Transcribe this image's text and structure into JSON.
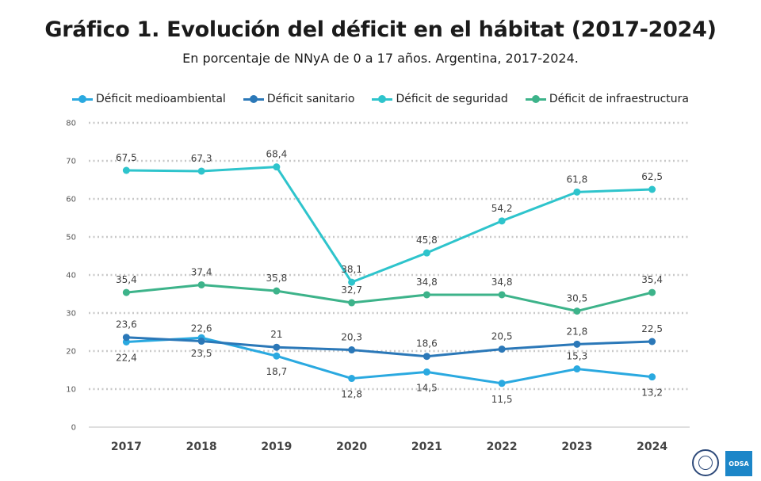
{
  "header": {
    "title": "Gráfico 1. Evolución del déficit en el hábitat (2017-2024)",
    "subtitle": "En porcentaje de NNyA de 0 a 17 años. Argentina, 2017-2024."
  },
  "logos": {
    "odsa_text": "ODSA",
    "seal_icon": "university-seal-icon"
  },
  "chart_data": {
    "type": "line",
    "title": "Gráfico 1. Evolución del déficit en el hábitat (2017-2024)",
    "subtitle": "En porcentaje de NNyA de 0 a 17 años. Argentina, 2017-2024.",
    "xlabel": "",
    "ylabel": "",
    "ylim": [
      0,
      80
    ],
    "yticks": [
      0,
      10,
      20,
      30,
      40,
      50,
      60,
      70,
      80
    ],
    "grid": true,
    "legend_position": "top",
    "categories": [
      "2017",
      "2018",
      "2019",
      "2020",
      "2021",
      "2022",
      "2023",
      "2024"
    ],
    "series": [
      {
        "name": "Déficit medioambiental",
        "color": "#2aa9e0",
        "values": [
          22.4,
          23.5,
          18.7,
          12.8,
          14.5,
          11.5,
          15.3,
          13.2
        ],
        "labels": [
          "22,4",
          "23,5",
          "18,7",
          "12,8",
          "14,5",
          "11,5",
          "15,3",
          "13,2"
        ]
      },
      {
        "name": "Déficit sanitario",
        "color": "#2b78b8",
        "values": [
          23.6,
          22.6,
          21,
          20.3,
          18.6,
          20.5,
          21.8,
          22.5
        ],
        "labels": [
          "23,6",
          "22,6",
          "21",
          "20,3",
          "18,6",
          "20,5",
          "21,8",
          "22,5"
        ]
      },
      {
        "name": "Déficit de seguridad",
        "color": "#2ec4cc",
        "values": [
          67.5,
          67.3,
          68.4,
          38.1,
          45.8,
          54.2,
          61.8,
          62.5
        ],
        "labels": [
          "67,5",
          "67,3",
          "68,4",
          "38,1",
          "45,8",
          "54,2",
          "61,8",
          "62,5"
        ]
      },
      {
        "name": "Déficit de infraestructura",
        "color": "#3db38a",
        "values": [
          35.4,
          37.4,
          35.8,
          32.7,
          34.8,
          34.8,
          30.5,
          35.4
        ],
        "labels": [
          "35,4",
          "37,4",
          "35,8",
          "32,7",
          "34,8",
          "34,8",
          "30,5",
          "35,4"
        ]
      }
    ]
  }
}
